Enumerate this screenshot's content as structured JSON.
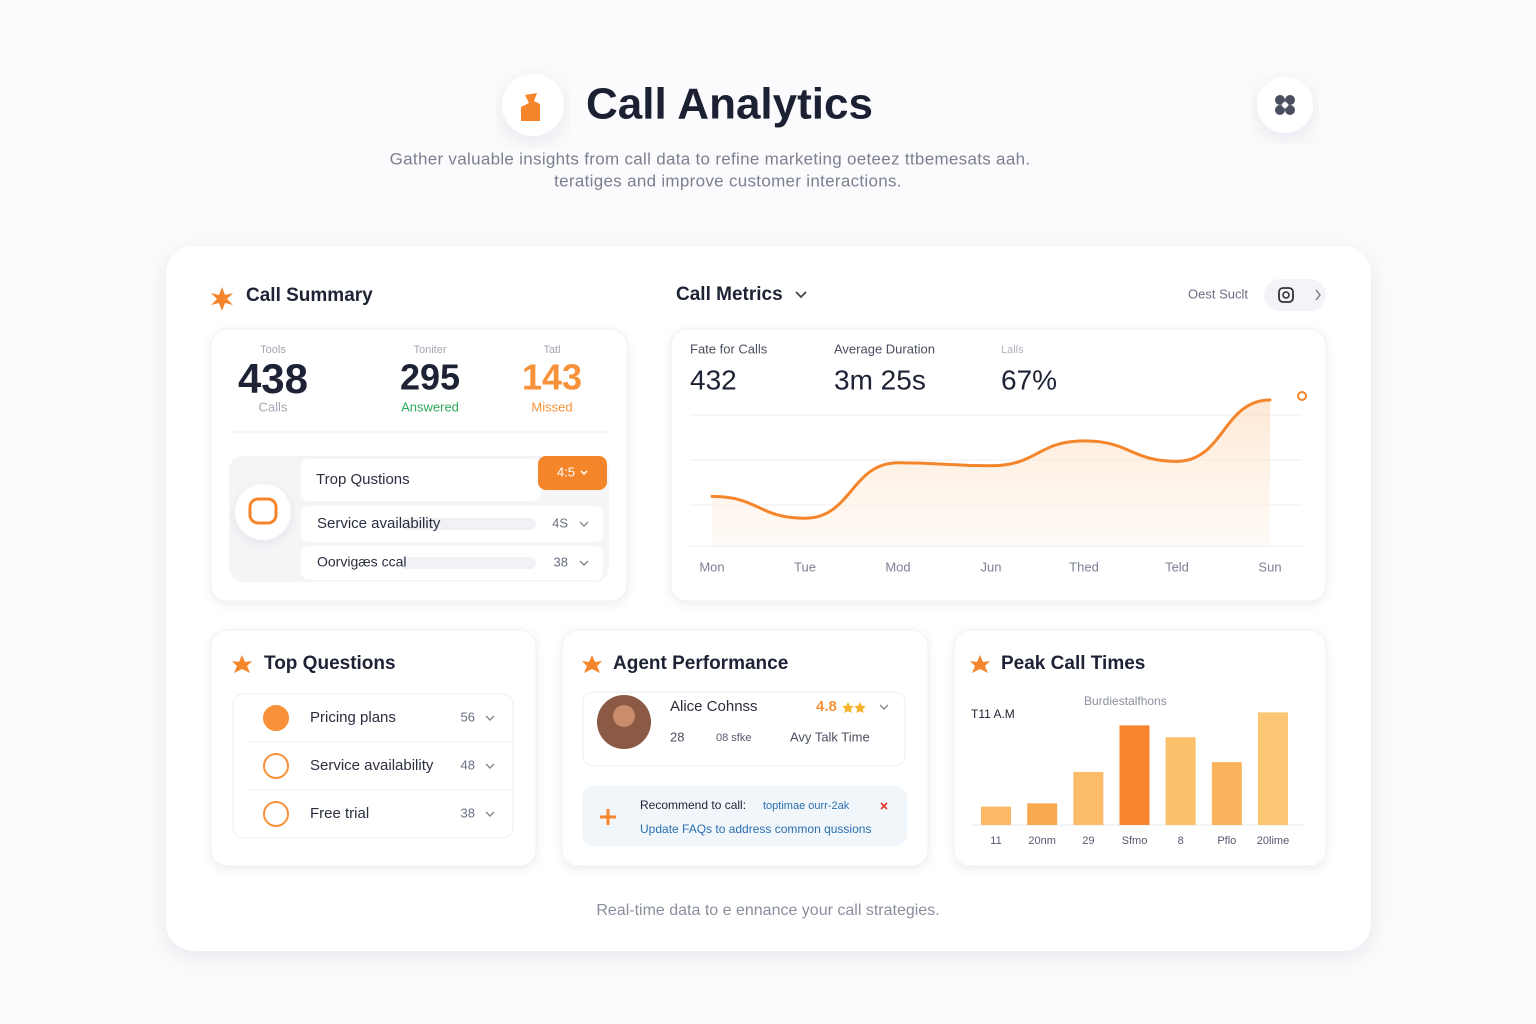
{
  "header": {
    "title": "Call Analytics",
    "subtitle": [
      "Gather valuable insights from call data to refine marketing oeteez ttbemesats aah.",
      "teratiges and improve customer interactions."
    ]
  },
  "call_summary": {
    "title": "Call Summary",
    "stats": [
      {
        "label": "Tools",
        "value": 438,
        "caption": "Calls"
      },
      {
        "label": "Toniter",
        "value": 295,
        "caption": "Answered"
      },
      {
        "label": "Tatl",
        "value": 143,
        "caption": "Missed"
      }
    ],
    "questions": {
      "title": "Trop Qustions",
      "badge": "4:5",
      "items": [
        {
          "label": "Service availability",
          "count": "4S"
        },
        {
          "label": "Oorvigæs ccal",
          "count": 38
        }
      ]
    }
  },
  "call_metrics": {
    "title": "Call Metrics",
    "search": "Oest Suclt",
    "stats": [
      {
        "label": "Fate for Calls",
        "value": 432
      },
      {
        "label": "Average Duration",
        "value": "3m 25s"
      },
      {
        "label": "Lalls",
        "value": "67%"
      }
    ],
    "chart": {
      "type": "line",
      "categories": [
        "Mon",
        "Tue",
        "Mod",
        "Jun",
        "Thed",
        "Teld",
        "Sun"
      ],
      "values": [
        34,
        19,
        57,
        55,
        72,
        58,
        100
      ],
      "ylim": [
        0,
        100
      ],
      "color": "#f5852b"
    }
  },
  "top_questions": {
    "title": "Top Questions",
    "items": [
      {
        "label": "Pricing plans",
        "count": 56
      },
      {
        "label": "Service availability",
        "count": 48
      },
      {
        "label": "Free trial",
        "count": 38
      }
    ]
  },
  "agent_performance": {
    "title": "Agent Performance",
    "agent": {
      "name": "Alice Cohnss",
      "rating": 4.8,
      "calls": 28,
      "duration": "08 sfke",
      "metric": "Avy Talk Time"
    },
    "recommendation": {
      "label": "Recommend to call:",
      "target": "toptimae ourr-2ak",
      "action": "Update FAQs to address common qussions"
    }
  },
  "peak_call_times": {
    "title": "Peak Call Times",
    "subtitle": "Burdiestalfhons",
    "peak": "T11 A.M",
    "chart": {
      "type": "bar",
      "categories": [
        "11",
        "20nm",
        "29",
        "Sfmo",
        "8",
        "Pflo",
        "20lime"
      ],
      "values": [
        17,
        20,
        49,
        92,
        81,
        58,
        104
      ],
      "ylim": [
        0,
        120
      ],
      "colors": [
        "#fbb866",
        "#f9a94f",
        "#fbbd6a",
        "#f7862f",
        "#fbc06c",
        "#fab25c",
        "#fbc673"
      ]
    }
  },
  "footer": "Real-time data to e ennance your call strategies."
}
